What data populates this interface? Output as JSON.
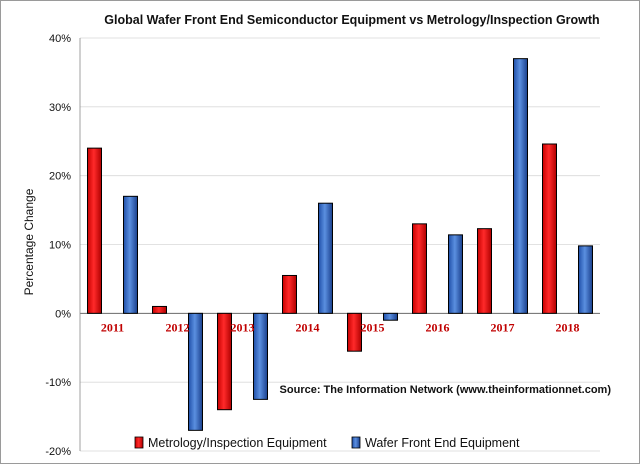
{
  "chart_data": {
    "type": "bar",
    "title": "Global Wafer Front End Semiconductor Equipment vs Metrology/Inspection Growth",
    "ylabel": "Percentage Change",
    "xlabel": "",
    "categories": [
      "2011",
      "2012",
      "2013",
      "2014",
      "2015",
      "2016",
      "2017",
      "2018"
    ],
    "series": [
      {
        "name": "Metrology/Inspection Equipment",
        "color": "#ee1111",
        "values": [
          24,
          1,
          -14,
          5.5,
          -5.5,
          13,
          12.3,
          24.6
        ]
      },
      {
        "name": "Wafer Front End Equipment",
        "color": "#3366cc",
        "values": [
          17,
          -17,
          -12.5,
          16,
          -1,
          11.4,
          37,
          9.8
        ]
      }
    ],
    "ylim": [
      -20,
      40
    ],
    "yticks": [
      -20,
      -10,
      0,
      10,
      20,
      30,
      40
    ],
    "ytick_labels": [
      "-20%",
      "-10%",
      "0%",
      "10%",
      "20%",
      "30%",
      "40%"
    ],
    "grid": true,
    "legend_position": "bottom",
    "annotation": "Source: The Information  Network (www.theinformationnet.com)"
  }
}
